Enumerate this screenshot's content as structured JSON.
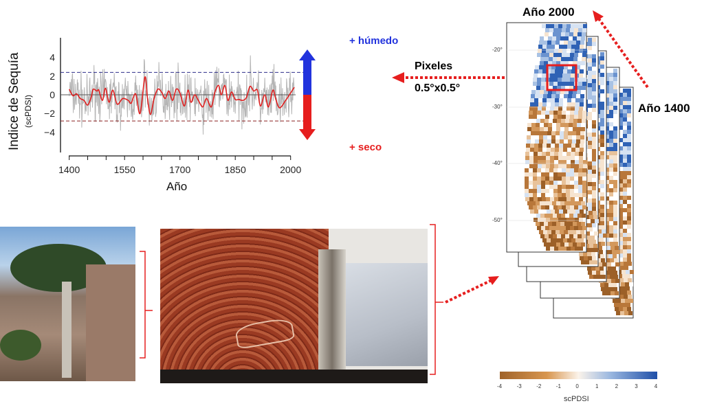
{
  "chart_data": {
    "type": "line",
    "title": "",
    "xlabel": "Año",
    "ylabel": "Indice de Sequía",
    "ylabel_sub": "(scPDSI)",
    "xlim": [
      1400,
      2010
    ],
    "ylim": [
      -6,
      6
    ],
    "xticks": [
      1400,
      1550,
      1700,
      1850,
      2000
    ],
    "yticks": [
      4,
      2,
      0,
      -2,
      -4
    ],
    "ytick_labels": [
      "4",
      "2",
      "0",
      "−2",
      "−4"
    ],
    "xtick_labels": [
      "1400",
      "1550",
      "1700",
      "1850",
      "2000"
    ],
    "thresholds": [
      {
        "value": 2.4,
        "color": "#2b2b8a"
      },
      {
        "value": -2.8,
        "color": "#8a2020"
      }
    ],
    "series": [
      {
        "style": "annual",
        "color": "#b5b5b5"
      },
      {
        "style": "smoothed",
        "color": "#e02020",
        "x": [
          1400,
          1410,
          1420,
          1430,
          1440,
          1450,
          1460,
          1465,
          1475,
          1480,
          1490,
          1498,
          1508,
          1518,
          1530,
          1545,
          1560,
          1568,
          1580,
          1592,
          1605,
          1612,
          1620,
          1630,
          1640,
          1650,
          1660,
          1670,
          1680,
          1690,
          1700,
          1712,
          1722,
          1730,
          1740,
          1750,
          1762,
          1772,
          1785,
          1795,
          1805,
          1812,
          1822,
          1830,
          1840,
          1850,
          1860,
          1870,
          1880,
          1890,
          1900,
          1910,
          1918,
          1930,
          1940,
          1952,
          1960,
          1970,
          1985,
          2010
        ],
        "y": [
          0.6,
          -0.1,
          0.1,
          -0.4,
          -0.6,
          -1.1,
          -0.2,
          0.6,
          0.4,
          0.5,
          -0.6,
          0.7,
          -0.8,
          0.5,
          -1.0,
          -0.4,
          -0.6,
          -0.9,
          0.1,
          -2.0,
          1.9,
          -0.3,
          -2.1,
          -0.4,
          0.6,
          0.3,
          -0.4,
          0.4,
          -0.6,
          0.6,
          0.2,
          -1.2,
          0.5,
          -0.8,
          0.0,
          -0.6,
          -1.3,
          -0.4,
          -1.3,
          0.3,
          1.0,
          0.0,
          1.0,
          -0.6,
          0.3,
          -0.5,
          -0.5,
          -0.6,
          -0.3,
          0.9,
          0.4,
          0.5,
          -1.2,
          0.0,
          -1.3,
          0.5,
          -0.5,
          -1.4,
          -0.7,
          0.8
        ]
      }
    ],
    "arrow_labels": {
      "wet": "+ húmedo",
      "dry": "+ seco",
      "wet_color": "#2233dd",
      "dry_color": "#e61e1e"
    }
  },
  "annotations": {
    "pixels_title": "Pixeles",
    "pixels_size": "0.5°x0.5°",
    "year_front": "Año 2000",
    "year_back": "Año 1400",
    "accent": "#e61e1e"
  },
  "map": {
    "lat_labels": [
      "-20°",
      "-30°",
      "-40°",
      "-50°"
    ],
    "colorbar": {
      "label": "scPDSI",
      "ticks": [
        "-4",
        "-3",
        "-2",
        "-1",
        "0",
        "1",
        "2",
        "3",
        "4"
      ],
      "dry_color": "#a0632a",
      "wet_color": "#1f4fa8"
    }
  },
  "photos": {
    "tree": "araucaria-tree-photo",
    "rings": "tree-ring-book-photo"
  }
}
